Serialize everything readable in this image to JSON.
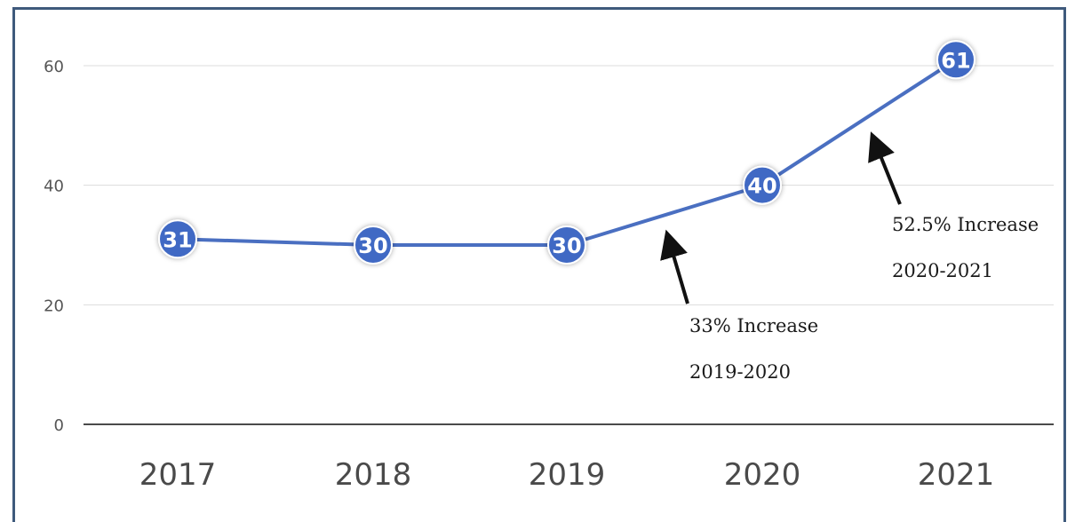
{
  "chart_data": {
    "type": "line",
    "categories": [
      "2017",
      "2018",
      "2019",
      "2020",
      "2021"
    ],
    "series": [
      {
        "values": [
          31,
          30,
          30,
          40,
          61
        ]
      }
    ],
    "data_labels": [
      "31",
      "30",
      "30",
      "40",
      "61"
    ],
    "y_ticks": [
      "0",
      "20",
      "40",
      "60"
    ],
    "ylim": [
      0,
      66
    ],
    "grid": true,
    "title": "",
    "xlabel": "",
    "ylabel": "",
    "annotations": [
      {
        "line1": "33% Increase",
        "line2": "2019-2020"
      },
      {
        "line1": "52.5% Increase",
        "line2": "2020-2021"
      }
    ],
    "colors": {
      "line": "#4a6fc1",
      "marker": "#4169c4",
      "grid": "#dcdcdc",
      "frame": "#3f5a7c"
    }
  }
}
